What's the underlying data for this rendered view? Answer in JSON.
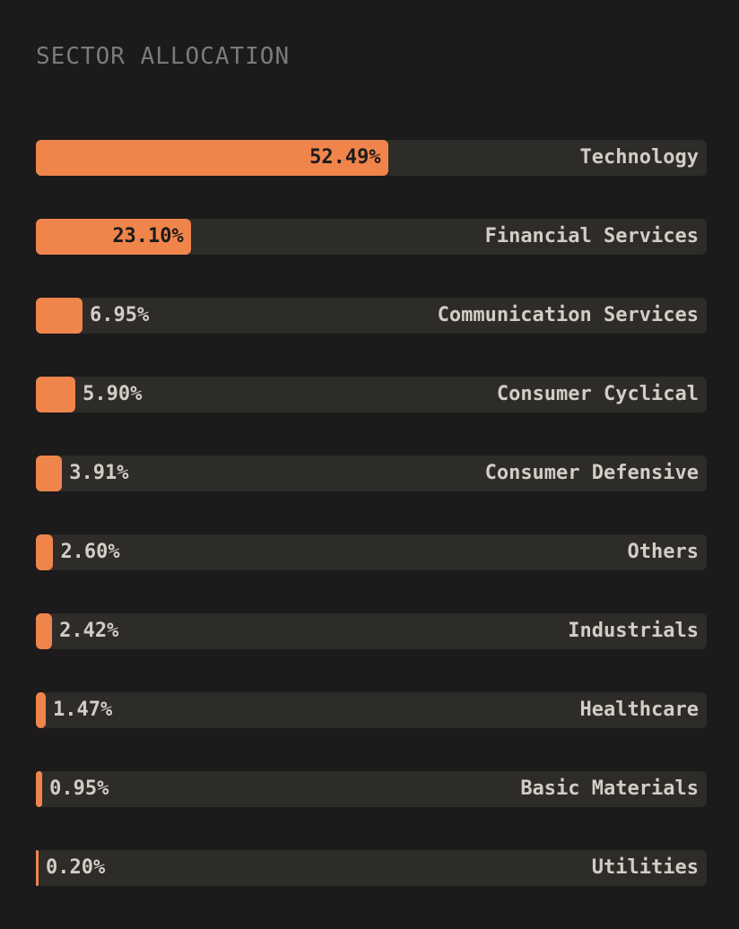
{
  "title": "SECTOR ALLOCATION",
  "colors": {
    "background": "#1c1a1b",
    "track": "#2e2c29",
    "bar": "#f0854c",
    "label": "#d2cdc5",
    "title": "#7d7b78"
  },
  "chart_data": {
    "type": "bar",
    "orientation": "horizontal",
    "title": "SECTOR ALLOCATION",
    "xlim": [
      0,
      100
    ],
    "unit": "%",
    "categories": [
      "Technology",
      "Financial Services",
      "Communication Services",
      "Consumer Cyclical",
      "Consumer Defensive",
      "Others",
      "Industrials",
      "Healthcare",
      "Basic Materials",
      "Utilities"
    ],
    "values": [
      52.49,
      23.1,
      6.95,
      5.9,
      3.91,
      2.6,
      2.42,
      1.47,
      0.95,
      0.2
    ],
    "value_labels": [
      "52.49%",
      "23.10%",
      "6.95%",
      "5.90%",
      "3.91%",
      "2.60%",
      "2.42%",
      "1.47%",
      "0.95%",
      "0.20%"
    ]
  }
}
